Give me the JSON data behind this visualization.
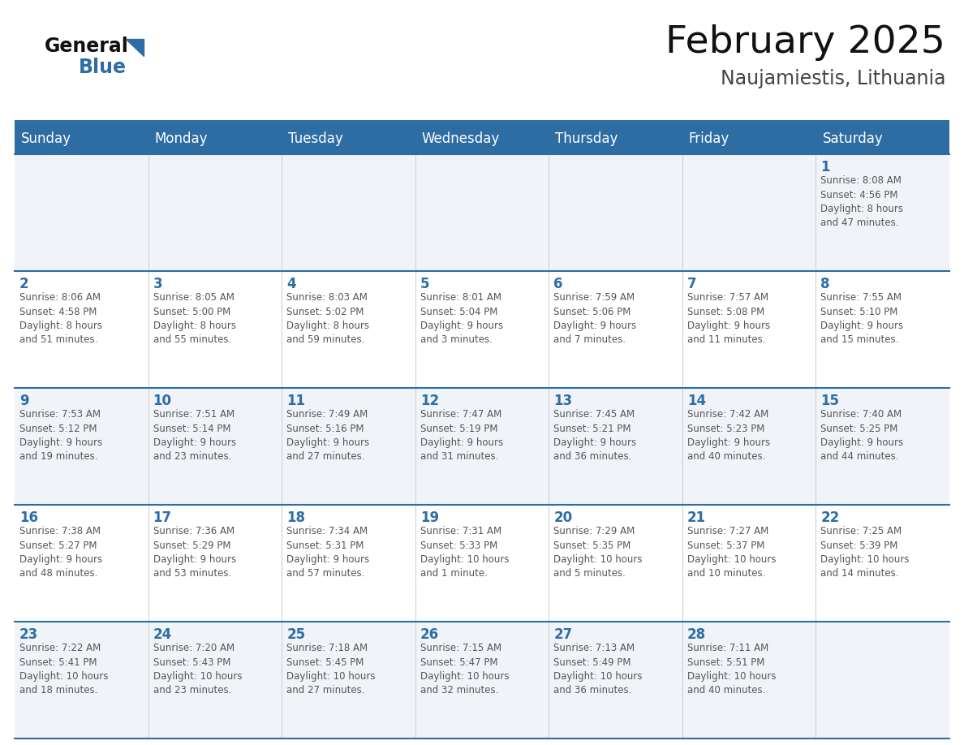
{
  "title": "February 2025",
  "subtitle": "Naujamiestis, Lithuania",
  "header_bg": "#2E6DA4",
  "header_text": "#FFFFFF",
  "cell_bg_odd": "#FFFFFF",
  "cell_bg_even": "#F0F4F8",
  "day_num_color": "#2E6DA4",
  "detail_color": "#555555",
  "row_border_color": "#2E6DA4",
  "col_border_color": "#BBBBBB",
  "days_of_week": [
    "Sunday",
    "Monday",
    "Tuesday",
    "Wednesday",
    "Thursday",
    "Friday",
    "Saturday"
  ],
  "weeks": [
    [
      {
        "day": "",
        "info": ""
      },
      {
        "day": "",
        "info": ""
      },
      {
        "day": "",
        "info": ""
      },
      {
        "day": "",
        "info": ""
      },
      {
        "day": "",
        "info": ""
      },
      {
        "day": "",
        "info": ""
      },
      {
        "day": "1",
        "info": "Sunrise: 8:08 AM\nSunset: 4:56 PM\nDaylight: 8 hours\nand 47 minutes."
      }
    ],
    [
      {
        "day": "2",
        "info": "Sunrise: 8:06 AM\nSunset: 4:58 PM\nDaylight: 8 hours\nand 51 minutes."
      },
      {
        "day": "3",
        "info": "Sunrise: 8:05 AM\nSunset: 5:00 PM\nDaylight: 8 hours\nand 55 minutes."
      },
      {
        "day": "4",
        "info": "Sunrise: 8:03 AM\nSunset: 5:02 PM\nDaylight: 8 hours\nand 59 minutes."
      },
      {
        "day": "5",
        "info": "Sunrise: 8:01 AM\nSunset: 5:04 PM\nDaylight: 9 hours\nand 3 minutes."
      },
      {
        "day": "6",
        "info": "Sunrise: 7:59 AM\nSunset: 5:06 PM\nDaylight: 9 hours\nand 7 minutes."
      },
      {
        "day": "7",
        "info": "Sunrise: 7:57 AM\nSunset: 5:08 PM\nDaylight: 9 hours\nand 11 minutes."
      },
      {
        "day": "8",
        "info": "Sunrise: 7:55 AM\nSunset: 5:10 PM\nDaylight: 9 hours\nand 15 minutes."
      }
    ],
    [
      {
        "day": "9",
        "info": "Sunrise: 7:53 AM\nSunset: 5:12 PM\nDaylight: 9 hours\nand 19 minutes."
      },
      {
        "day": "10",
        "info": "Sunrise: 7:51 AM\nSunset: 5:14 PM\nDaylight: 9 hours\nand 23 minutes."
      },
      {
        "day": "11",
        "info": "Sunrise: 7:49 AM\nSunset: 5:16 PM\nDaylight: 9 hours\nand 27 minutes."
      },
      {
        "day": "12",
        "info": "Sunrise: 7:47 AM\nSunset: 5:19 PM\nDaylight: 9 hours\nand 31 minutes."
      },
      {
        "day": "13",
        "info": "Sunrise: 7:45 AM\nSunset: 5:21 PM\nDaylight: 9 hours\nand 36 minutes."
      },
      {
        "day": "14",
        "info": "Sunrise: 7:42 AM\nSunset: 5:23 PM\nDaylight: 9 hours\nand 40 minutes."
      },
      {
        "day": "15",
        "info": "Sunrise: 7:40 AM\nSunset: 5:25 PM\nDaylight: 9 hours\nand 44 minutes."
      }
    ],
    [
      {
        "day": "16",
        "info": "Sunrise: 7:38 AM\nSunset: 5:27 PM\nDaylight: 9 hours\nand 48 minutes."
      },
      {
        "day": "17",
        "info": "Sunrise: 7:36 AM\nSunset: 5:29 PM\nDaylight: 9 hours\nand 53 minutes."
      },
      {
        "day": "18",
        "info": "Sunrise: 7:34 AM\nSunset: 5:31 PM\nDaylight: 9 hours\nand 57 minutes."
      },
      {
        "day": "19",
        "info": "Sunrise: 7:31 AM\nSunset: 5:33 PM\nDaylight: 10 hours\nand 1 minute."
      },
      {
        "day": "20",
        "info": "Sunrise: 7:29 AM\nSunset: 5:35 PM\nDaylight: 10 hours\nand 5 minutes."
      },
      {
        "day": "21",
        "info": "Sunrise: 7:27 AM\nSunset: 5:37 PM\nDaylight: 10 hours\nand 10 minutes."
      },
      {
        "day": "22",
        "info": "Sunrise: 7:25 AM\nSunset: 5:39 PM\nDaylight: 10 hours\nand 14 minutes."
      }
    ],
    [
      {
        "day": "23",
        "info": "Sunrise: 7:22 AM\nSunset: 5:41 PM\nDaylight: 10 hours\nand 18 minutes."
      },
      {
        "day": "24",
        "info": "Sunrise: 7:20 AM\nSunset: 5:43 PM\nDaylight: 10 hours\nand 23 minutes."
      },
      {
        "day": "25",
        "info": "Sunrise: 7:18 AM\nSunset: 5:45 PM\nDaylight: 10 hours\nand 27 minutes."
      },
      {
        "day": "26",
        "info": "Sunrise: 7:15 AM\nSunset: 5:47 PM\nDaylight: 10 hours\nand 32 minutes."
      },
      {
        "day": "27",
        "info": "Sunrise: 7:13 AM\nSunset: 5:49 PM\nDaylight: 10 hours\nand 36 minutes."
      },
      {
        "day": "28",
        "info": "Sunrise: 7:11 AM\nSunset: 5:51 PM\nDaylight: 10 hours\nand 40 minutes."
      },
      {
        "day": "",
        "info": ""
      }
    ]
  ]
}
